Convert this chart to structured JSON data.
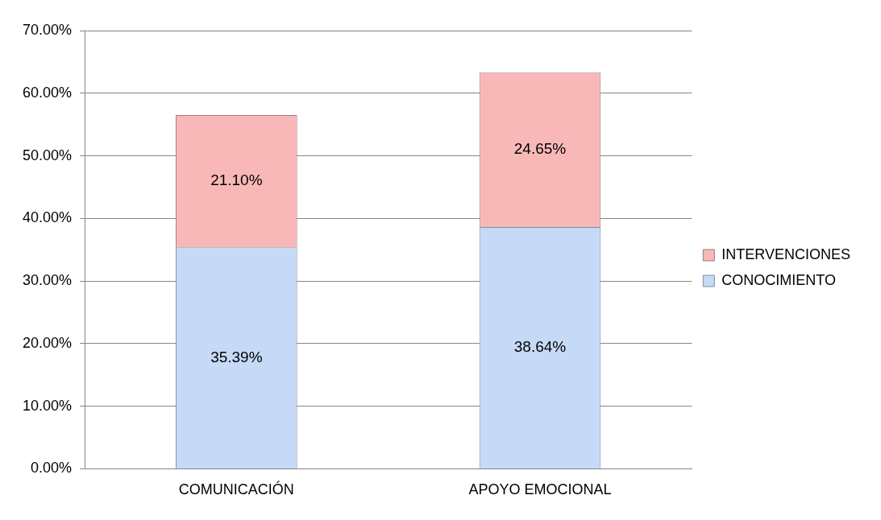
{
  "chart_data": {
    "type": "bar",
    "stacked": true,
    "categories": [
      "COMUNICACIÓN",
      "APOYO EMOCIONAL"
    ],
    "series": [
      {
        "name": "CONOCIMIENTO",
        "color": "#c6d9f7",
        "values": [
          35.39,
          38.64
        ],
        "value_labels": [
          "35.39%",
          "38.64%"
        ]
      },
      {
        "name": "INTERVENCIONES",
        "color": "#f9b8b8",
        "values": [
          21.1,
          24.65
        ],
        "value_labels": [
          "21.10%",
          "24.65%"
        ]
      }
    ],
    "ylim": [
      0,
      70
    ],
    "yticks": [
      {
        "value": 0,
        "label": "0.00%"
      },
      {
        "value": 10,
        "label": "10.00%"
      },
      {
        "value": 20,
        "label": "20.00%"
      },
      {
        "value": 30,
        "label": "30.00%"
      },
      {
        "value": 40,
        "label": "40.00%"
      },
      {
        "value": 50,
        "label": "50.00%"
      },
      {
        "value": 60,
        "label": "60.00%"
      },
      {
        "value": 70,
        "label": "70.00%"
      }
    ],
    "grid": "y",
    "legend": "right"
  }
}
